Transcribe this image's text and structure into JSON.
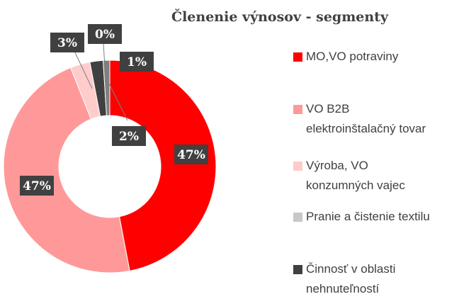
{
  "chart_data": {
    "type": "donut",
    "title": "Členenie výnosov - segmenty",
    "categories": [
      "MO,VO potraviny",
      "VO B2B elektroinštalačný tovar",
      "Výroba, VO konzumných vajec",
      "Pranie a čistenie textilu",
      "Činnosť v oblasti nehnuteľností",
      null
    ],
    "values": [
      47,
      47,
      3,
      0,
      2,
      1
    ],
    "value_labels": [
      "47%",
      "47%",
      "3%",
      "0%",
      "2%",
      "1%"
    ],
    "colors": [
      "#ff0000",
      "#ff9999",
      "#ffcccc",
      "#c8c8c8",
      "#404040",
      "#7f7f7f"
    ],
    "legend": "right"
  }
}
